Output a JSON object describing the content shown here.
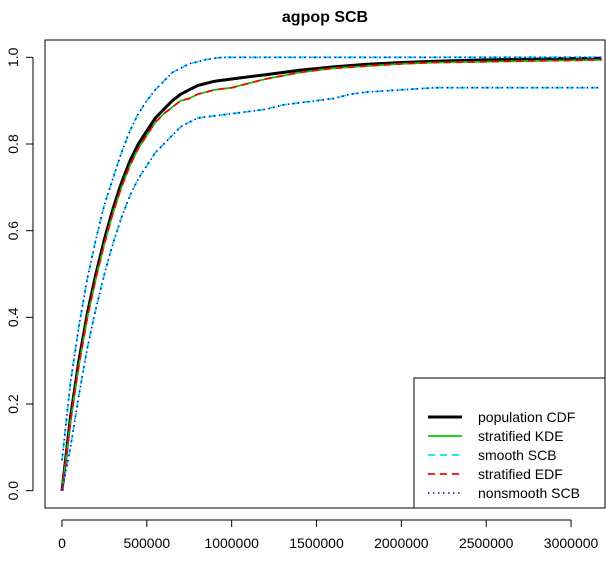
{
  "chart_data": {
    "type": "line",
    "title": "agpop SCB",
    "xlabel": "",
    "ylabel": "",
    "xlim": [
      -100000,
      3200000
    ],
    "ylim": [
      -0.04,
      1.04
    ],
    "xticks": [
      0,
      500000,
      1000000,
      1500000,
      2000000,
      2500000,
      3000000
    ],
    "xtick_labels": [
      "0",
      "500000",
      "1000000",
      "1500000",
      "2000000",
      "2500000",
      "3000000"
    ],
    "yticks": [
      0.0,
      0.2,
      0.4,
      0.6,
      0.8,
      1.0
    ],
    "ytick_labels": [
      "0.0",
      "0.2",
      "0.4",
      "0.6",
      "0.8",
      "1.0"
    ],
    "grid": false,
    "legend_position": "bottom-right",
    "series": [
      {
        "name": "population CDF",
        "color": "#000000",
        "style": "solid-thick",
        "x": [
          0,
          50000,
          100000,
          150000,
          200000,
          250000,
          300000,
          350000,
          400000,
          450000,
          500000,
          550000,
          600000,
          650000,
          700000,
          750000,
          800000,
          900000,
          1000000,
          1200000,
          1400000,
          1600000,
          1800000,
          2000000,
          2200000,
          2500000,
          2800000,
          3000000,
          3180000
        ],
        "y": [
          0.0,
          0.17,
          0.3,
          0.41,
          0.5,
          0.58,
          0.65,
          0.71,
          0.76,
          0.8,
          0.83,
          0.86,
          0.88,
          0.9,
          0.915,
          0.925,
          0.935,
          0.945,
          0.95,
          0.96,
          0.97,
          0.978,
          0.984,
          0.988,
          0.991,
          0.994,
          0.996,
          0.997,
          0.998
        ]
      },
      {
        "name": "stratified KDE",
        "color": "#00cc00",
        "style": "solid",
        "x": [
          0,
          50000,
          100000,
          150000,
          200000,
          250000,
          300000,
          350000,
          400000,
          450000,
          500000,
          550000,
          600000,
          650000,
          700000,
          750000,
          800000,
          900000,
          1000000,
          1100000,
          1200000,
          1400000,
          1600000,
          1800000,
          2000000,
          2200000,
          2500000,
          2800000,
          3000000,
          3180000
        ],
        "y": [
          0.0,
          0.16,
          0.29,
          0.4,
          0.49,
          0.57,
          0.64,
          0.7,
          0.75,
          0.79,
          0.82,
          0.85,
          0.87,
          0.885,
          0.9,
          0.905,
          0.915,
          0.925,
          0.93,
          0.94,
          0.95,
          0.965,
          0.975,
          0.98,
          0.985,
          0.988,
          0.99,
          0.992,
          0.993,
          0.994
        ]
      },
      {
        "name": "smooth SCB",
        "color": "#00e5ee",
        "style": "dashed",
        "bands": [
          {
            "x": [
              0,
              50000,
              100000,
              150000,
              200000,
              250000,
              300000,
              350000,
              400000,
              450000,
              500000,
              550000,
              600000,
              650000,
              700000,
              750000,
              800000,
              850000,
              900000,
              950000,
              1000000,
              1500000,
              2000000,
              2500000,
              3000000,
              3180000
            ],
            "y": [
              0.07,
              0.25,
              0.38,
              0.49,
              0.58,
              0.66,
              0.72,
              0.78,
              0.83,
              0.87,
              0.9,
              0.925,
              0.945,
              0.965,
              0.975,
              0.985,
              0.99,
              0.995,
              0.998,
              1.0,
              1.0,
              1.0,
              1.0,
              1.0,
              1.0,
              1.0
            ]
          },
          {
            "x": [
              0,
              50000,
              100000,
              150000,
              200000,
              250000,
              300000,
              350000,
              400000,
              450000,
              500000,
              550000,
              600000,
              650000,
              700000,
              750000,
              800000,
              900000,
              1000000,
              1100000,
              1200000,
              1300000,
              1400000,
              1500000,
              1600000,
              1700000,
              1800000,
              2000000,
              2200000,
              2500000,
              3000000,
              3180000
            ],
            "y": [
              0.0,
              0.1,
              0.22,
              0.33,
              0.42,
              0.5,
              0.57,
              0.63,
              0.68,
              0.72,
              0.75,
              0.78,
              0.8,
              0.82,
              0.84,
              0.85,
              0.86,
              0.865,
              0.87,
              0.875,
              0.88,
              0.89,
              0.895,
              0.9,
              0.905,
              0.915,
              0.92,
              0.925,
              0.93,
              0.93,
              0.93,
              0.93
            ]
          }
        ]
      },
      {
        "name": "stratified EDF",
        "color": "#ff0000",
        "style": "dashed",
        "x": [
          0,
          50000,
          100000,
          150000,
          200000,
          250000,
          300000,
          350000,
          400000,
          450000,
          500000,
          550000,
          600000,
          650000,
          700000,
          750000,
          800000,
          900000,
          1000000,
          1100000,
          1200000,
          1400000,
          1600000,
          1800000,
          2000000,
          2200000,
          2500000,
          2800000,
          3000000,
          3180000
        ],
        "y": [
          0.0,
          0.16,
          0.29,
          0.4,
          0.49,
          0.57,
          0.64,
          0.7,
          0.75,
          0.79,
          0.82,
          0.85,
          0.87,
          0.885,
          0.9,
          0.905,
          0.915,
          0.925,
          0.93,
          0.94,
          0.95,
          0.965,
          0.975,
          0.98,
          0.985,
          0.988,
          0.99,
          0.992,
          0.993,
          0.994
        ]
      },
      {
        "name": "nonsmooth SCB",
        "color": "#0000ff",
        "style": "dotted",
        "bands": [
          {
            "x": [
              0,
              50000,
              100000,
              150000,
              200000,
              250000,
              300000,
              350000,
              400000,
              450000,
              500000,
              550000,
              600000,
              650000,
              700000,
              750000,
              800000,
              850000,
              900000,
              950000,
              1000000,
              1500000,
              2000000,
              2500000,
              3000000,
              3180000
            ],
            "y": [
              0.07,
              0.25,
              0.38,
              0.49,
              0.58,
              0.66,
              0.72,
              0.78,
              0.83,
              0.87,
              0.9,
              0.925,
              0.945,
              0.965,
              0.975,
              0.985,
              0.99,
              0.995,
              0.998,
              1.0,
              1.0,
              1.0,
              1.0,
              1.0,
              1.0,
              1.0
            ]
          },
          {
            "x": [
              0,
              50000,
              100000,
              150000,
              200000,
              250000,
              300000,
              350000,
              400000,
              450000,
              500000,
              550000,
              600000,
              650000,
              700000,
              750000,
              800000,
              900000,
              1000000,
              1100000,
              1200000,
              1300000,
              1400000,
              1500000,
              1600000,
              1700000,
              1800000,
              2000000,
              2200000,
              2500000,
              3000000,
              3180000
            ],
            "y": [
              0.0,
              0.1,
              0.22,
              0.33,
              0.42,
              0.5,
              0.57,
              0.63,
              0.68,
              0.72,
              0.75,
              0.78,
              0.8,
              0.82,
              0.84,
              0.85,
              0.86,
              0.865,
              0.87,
              0.875,
              0.88,
              0.89,
              0.895,
              0.9,
              0.905,
              0.915,
              0.92,
              0.925,
              0.93,
              0.93,
              0.93,
              0.93
            ]
          }
        ]
      }
    ],
    "legend": [
      {
        "label": "population CDF",
        "color": "#000000",
        "style": "solid-thick"
      },
      {
        "label": "stratified KDE",
        "color": "#00cc00",
        "style": "solid"
      },
      {
        "label": "smooth SCB",
        "color": "#00e5ee",
        "style": "dashed"
      },
      {
        "label": "stratified EDF",
        "color": "#ff0000",
        "style": "dashed"
      },
      {
        "label": "nonsmooth SCB",
        "color": "#0000ff",
        "style": "dotted"
      }
    ]
  }
}
